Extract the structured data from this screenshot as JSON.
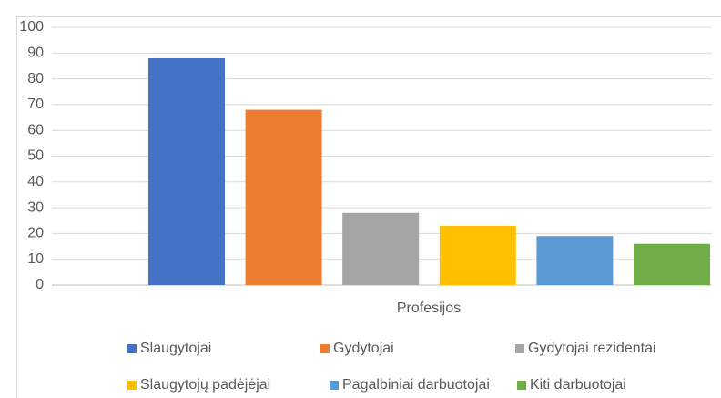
{
  "chart_data": {
    "type": "bar",
    "x_label": "Profesijos",
    "series": [
      {
        "name": "Slaugytojai",
        "color": "#4472c4",
        "values": [
          88
        ]
      },
      {
        "name": "Gydytojai",
        "color": "#ed7d31",
        "values": [
          68
        ]
      },
      {
        "name": "Gydytojai rezidentai",
        "color": "#a5a5a5",
        "values": [
          28
        ]
      },
      {
        "name": "Slaugytojų padėjėjai",
        "color": "#ffc000",
        "values": [
          23
        ]
      },
      {
        "name": "Pagalbiniai darbuotojai",
        "color": "#5b9bd5",
        "values": [
          19
        ]
      },
      {
        "name": "Kiti darbuotojai",
        "color": "#70ad47",
        "values": [
          16
        ]
      }
    ],
    "ylim": [
      0,
      100
    ],
    "yticks": [
      0,
      10,
      20,
      30,
      40,
      50,
      60,
      70,
      80,
      90,
      100
    ],
    "grid": true,
    "legend": "bottom"
  }
}
